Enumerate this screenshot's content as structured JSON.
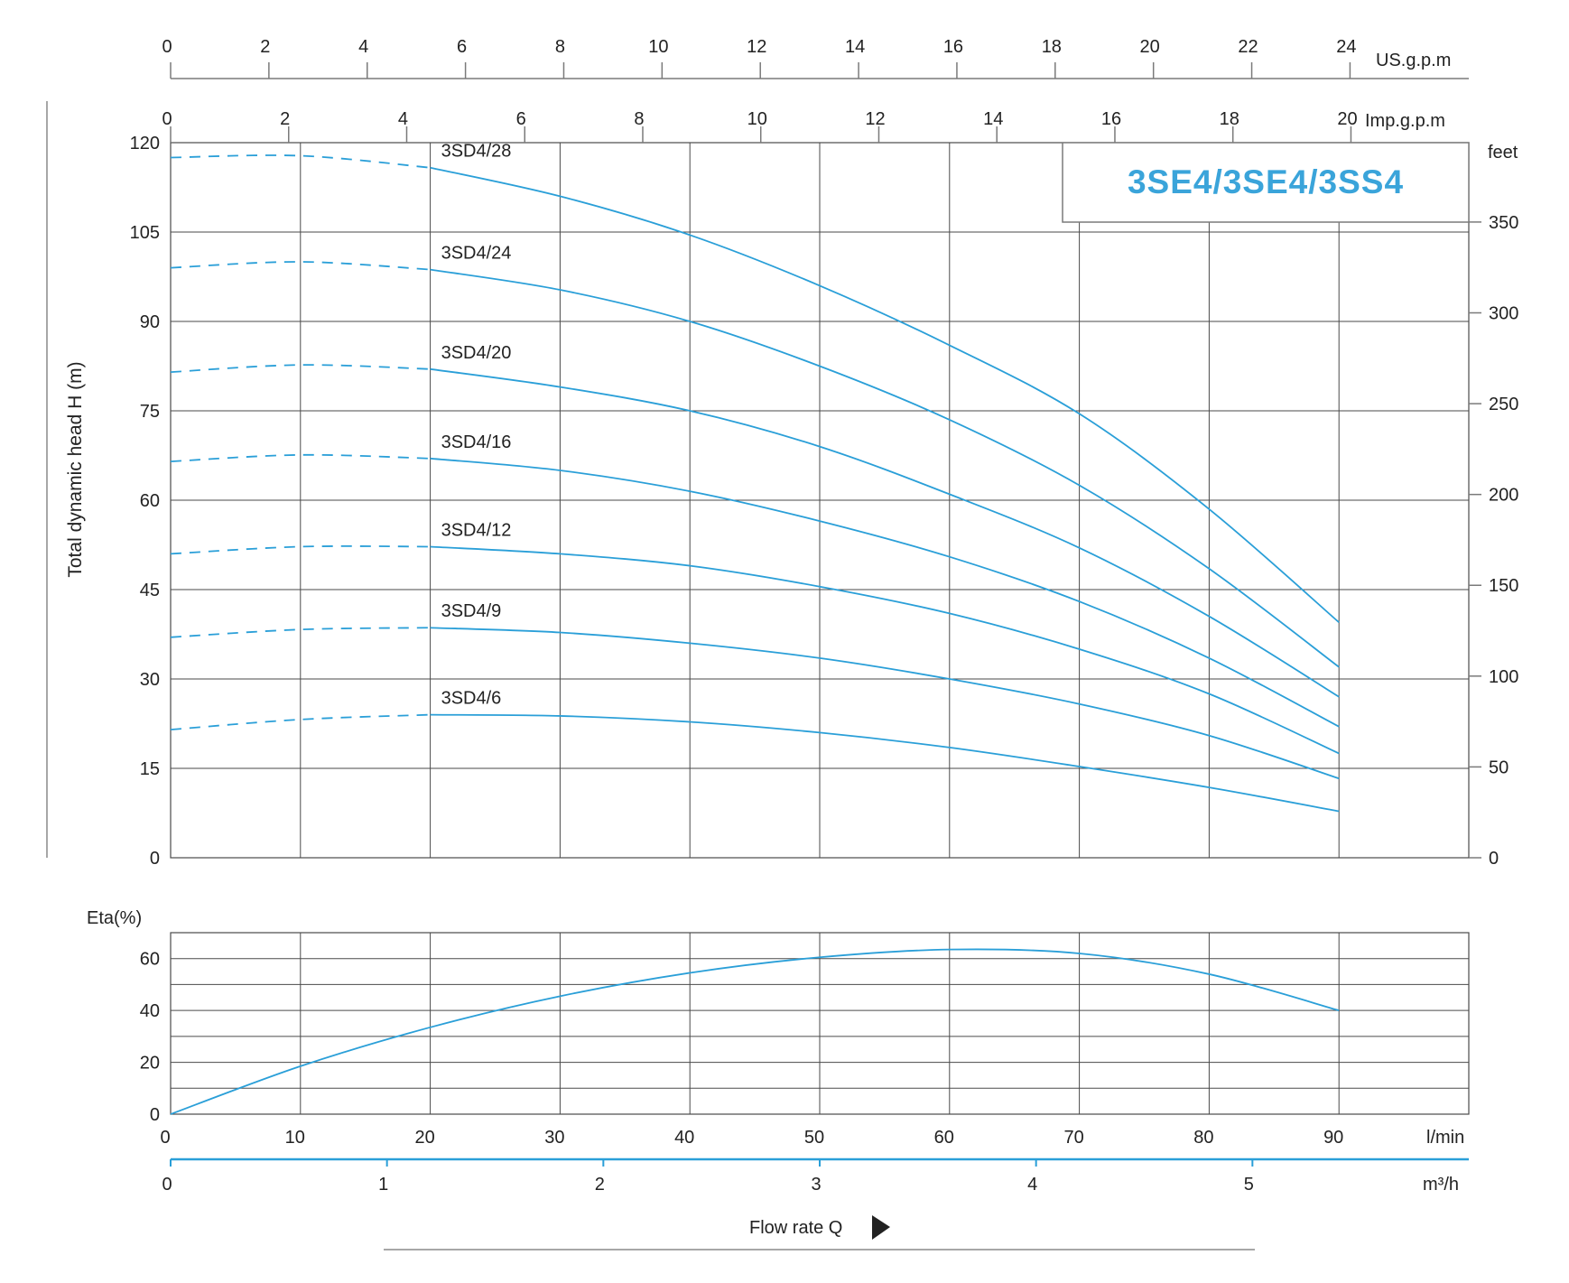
{
  "chart_data": {
    "type": "line",
    "title": "3SE4/3SE4/3SS4",
    "color": "#2a9fd8",
    "title_color": "#3aa4da",
    "grid": true,
    "head": {
      "ylabel": "Total dynamic head H (m)",
      "ylim": [
        0,
        120
      ],
      "yticks": [
        0,
        15,
        30,
        45,
        60,
        75,
        90,
        105,
        120
      ],
      "right_unit": "feet",
      "right_ticks": [
        0,
        50,
        100,
        150,
        200,
        250,
        300,
        350
      ],
      "dashed_until_x": 20,
      "series": [
        {
          "name": "3SD4/28",
          "x": [
            0,
            10,
            20,
            30,
            40,
            50,
            60,
            70,
            80,
            90
          ],
          "y": [
            117.5,
            117.8,
            115.8,
            111.0,
            104.5,
            96.0,
            86.0,
            74.5,
            58.5,
            39.5
          ]
        },
        {
          "name": "3SD4/24",
          "x": [
            0,
            10,
            20,
            30,
            40,
            50,
            60,
            70,
            80,
            90
          ],
          "y": [
            99.0,
            100.0,
            98.7,
            95.3,
            90.0,
            82.5,
            73.5,
            62.5,
            48.5,
            32.0
          ]
        },
        {
          "name": "3SD4/20",
          "x": [
            0,
            10,
            20,
            30,
            40,
            50,
            60,
            70,
            80,
            90
          ],
          "y": [
            81.5,
            82.7,
            82.0,
            79.0,
            75.0,
            69.0,
            61.0,
            52.0,
            40.5,
            27.0
          ]
        },
        {
          "name": "3SD4/16",
          "x": [
            0,
            10,
            20,
            30,
            40,
            50,
            60,
            70,
            80,
            90
          ],
          "y": [
            66.5,
            67.6,
            67.0,
            65.0,
            61.5,
            56.5,
            50.5,
            43.0,
            33.5,
            22.0
          ]
        },
        {
          "name": "3SD4/12",
          "x": [
            0,
            10,
            20,
            30,
            40,
            50,
            60,
            70,
            80,
            90
          ],
          "y": [
            51.0,
            52.2,
            52.2,
            51.0,
            49.0,
            45.5,
            41.0,
            35.0,
            27.5,
            17.5
          ]
        },
        {
          "name": "3SD4/9",
          "x": [
            0,
            10,
            20,
            30,
            40,
            50,
            60,
            70,
            80,
            90
          ],
          "y": [
            37.0,
            38.3,
            38.6,
            37.8,
            36.0,
            33.5,
            30.0,
            25.8,
            20.5,
            13.3
          ]
        },
        {
          "name": "3SD4/6",
          "x": [
            0,
            10,
            20,
            30,
            40,
            50,
            60,
            70,
            80,
            90
          ],
          "y": [
            21.5,
            23.2,
            24.0,
            23.8,
            22.8,
            21.0,
            18.5,
            15.3,
            11.8,
            7.8
          ]
        }
      ]
    },
    "efficiency": {
      "ylabel": "Eta(%)",
      "ylim": [
        0,
        70
      ],
      "yticks": [
        0,
        20,
        40,
        60
      ],
      "series": [
        {
          "x": [
            0,
            10,
            20,
            30,
            40,
            50,
            60,
            70,
            80,
            90
          ],
          "y": [
            0,
            18.5,
            33.5,
            45.5,
            54.5,
            60.5,
            63.5,
            62.0,
            54.0,
            40.0
          ]
        }
      ]
    },
    "x_axes": {
      "lmin": {
        "unit": "l/min",
        "ticks": [
          0,
          10,
          20,
          30,
          40,
          50,
          60,
          70,
          80,
          90
        ]
      },
      "m3h": {
        "unit": "m³/h",
        "ticks": [
          0,
          1,
          2,
          3,
          4,
          5
        ]
      },
      "usgpm": {
        "unit": "US.g.p.m",
        "ticks": [
          0,
          2,
          4,
          6,
          8,
          10,
          12,
          14,
          16,
          18,
          20,
          22,
          24
        ]
      },
      "impgpm": {
        "unit": "Imp.g.p.m",
        "ticks": [
          0,
          2,
          4,
          6,
          8,
          10,
          12,
          14,
          16,
          18,
          20
        ]
      },
      "xlim": [
        0,
        100
      ]
    },
    "xlabel": "Flow rate Q"
  }
}
